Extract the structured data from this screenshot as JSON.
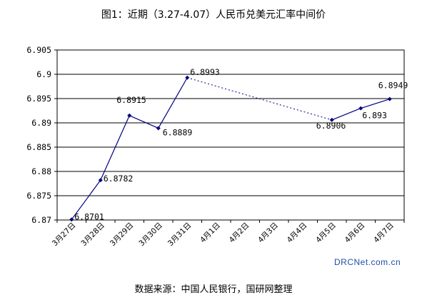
{
  "chart_data": {
    "type": "line",
    "title": "图1：近期（3.27-4.07）人民币兑美元汇率中间价",
    "categories": [
      "3月27日",
      "3月28日",
      "3月29日",
      "3月30日",
      "3月31日",
      "4月1日",
      "4月2日",
      "4月3日",
      "4月4日",
      "4月5日",
      "4月6日",
      "4月7日"
    ],
    "series": [
      {
        "values": [
          6.8701,
          6.8782,
          6.8915,
          6.8889,
          6.8993,
          null,
          null,
          null,
          null,
          6.8906,
          6.893,
          6.8949
        ],
        "labels": [
          "6.8701",
          "6.8782",
          "6.8915",
          "6.8889",
          "6.8993",
          "",
          "",
          "",
          "",
          "6.8906",
          "6.893",
          "6.8949"
        ],
        "color": "#000080"
      }
    ],
    "gap_connector": "dotted",
    "ylim": [
      6.87,
      6.905
    ],
    "yticks": [
      6.87,
      6.875,
      6.88,
      6.885,
      6.89,
      6.895,
      6.9,
      6.905
    ],
    "ytick_labels": [
      "6.87",
      "6.875",
      "6.88",
      "6.885",
      "6.89",
      "6.895",
      "6.9",
      "6.905"
    ],
    "grid": true,
    "xlabel": "",
    "ylabel": ""
  },
  "watermark": "DRCNet.com.cn",
  "source_note": "数据来源：中国人民银行，国研网整理"
}
